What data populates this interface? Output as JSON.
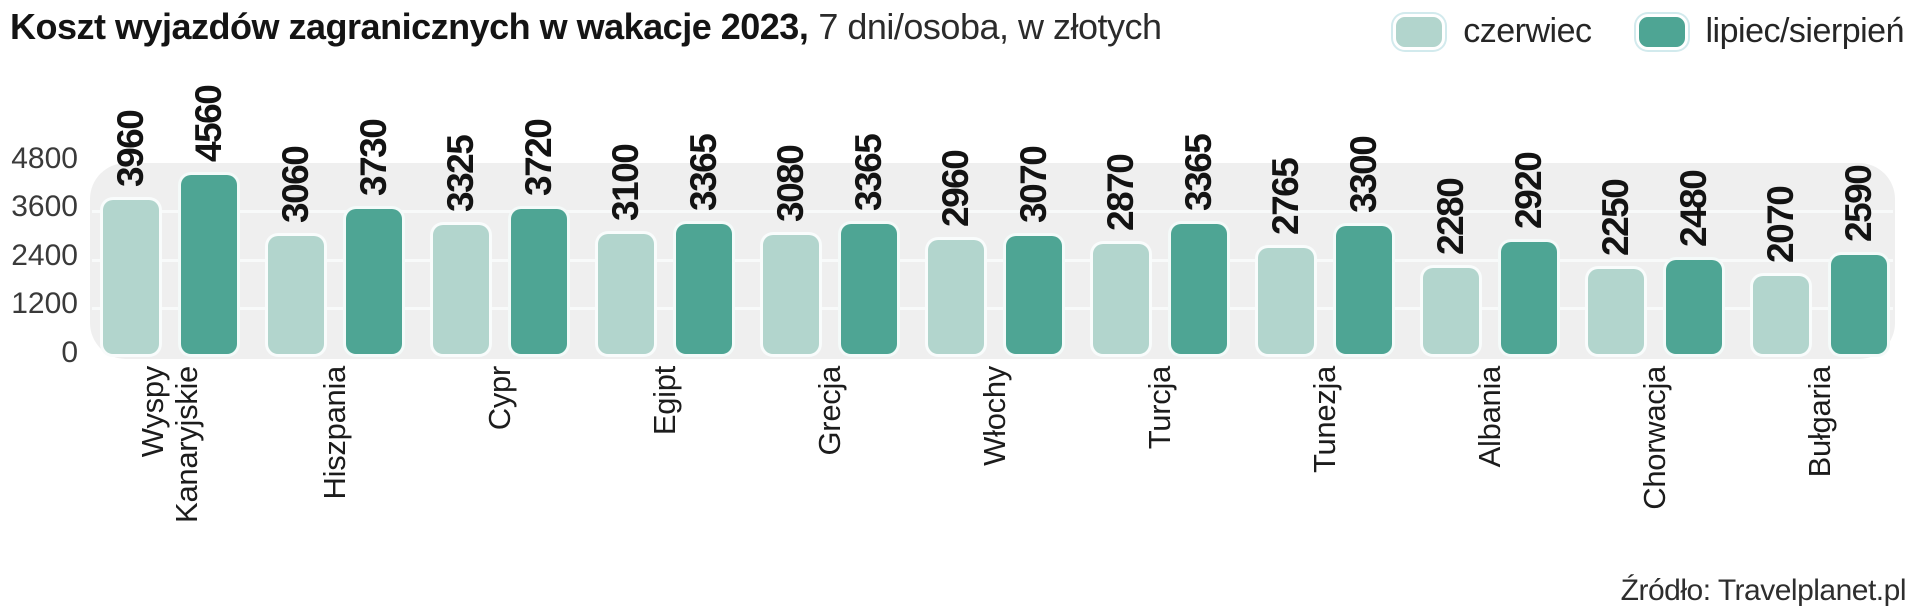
{
  "title": {
    "bold": "Koszt wyjazdów zagranicznych w wakacje 2023,",
    "regular": "7 dni/osoba, w złotych"
  },
  "legend": [
    {
      "label": "czerwiec",
      "color": "#b2d5cd"
    },
    {
      "label": "lipiec/sierpień",
      "color": "#4ea594"
    }
  ],
  "source": "Źródło: Travelplanet.pl",
  "chart_data": {
    "type": "bar",
    "title": "Koszt wyjazdów zagranicznych w wakacje 2023",
    "subtitle": "7 dni/osoba, w złotych",
    "legend_position": "top-right",
    "grid": "horizontal",
    "ylim": [
      0,
      4800
    ],
    "yticks": [
      0,
      1200,
      2400,
      3600,
      4800
    ],
    "categories": [
      [
        "Wyspy",
        "Kanaryjskie"
      ],
      [
        "Hiszpania"
      ],
      [
        "Cypr"
      ],
      [
        "Egipt"
      ],
      [
        "Grecja"
      ],
      [
        "Włochy"
      ],
      [
        "Turcja"
      ],
      [
        "Tunezja"
      ],
      [
        "Albania"
      ],
      [
        "Chorwacja"
      ],
      [
        "Bułgaria"
      ]
    ],
    "series": [
      {
        "name": "czerwiec",
        "color": "#b2d5cd",
        "values": [
          3960,
          3060,
          3325,
          3100,
          3080,
          2960,
          2870,
          2765,
          2280,
          2250,
          2070
        ]
      },
      {
        "name": "lipiec/sierpień",
        "color": "#4ea594",
        "values": [
          4560,
          3730,
          3720,
          3365,
          3365,
          3070,
          3365,
          3300,
          2920,
          2480,
          2590
        ]
      }
    ]
  }
}
